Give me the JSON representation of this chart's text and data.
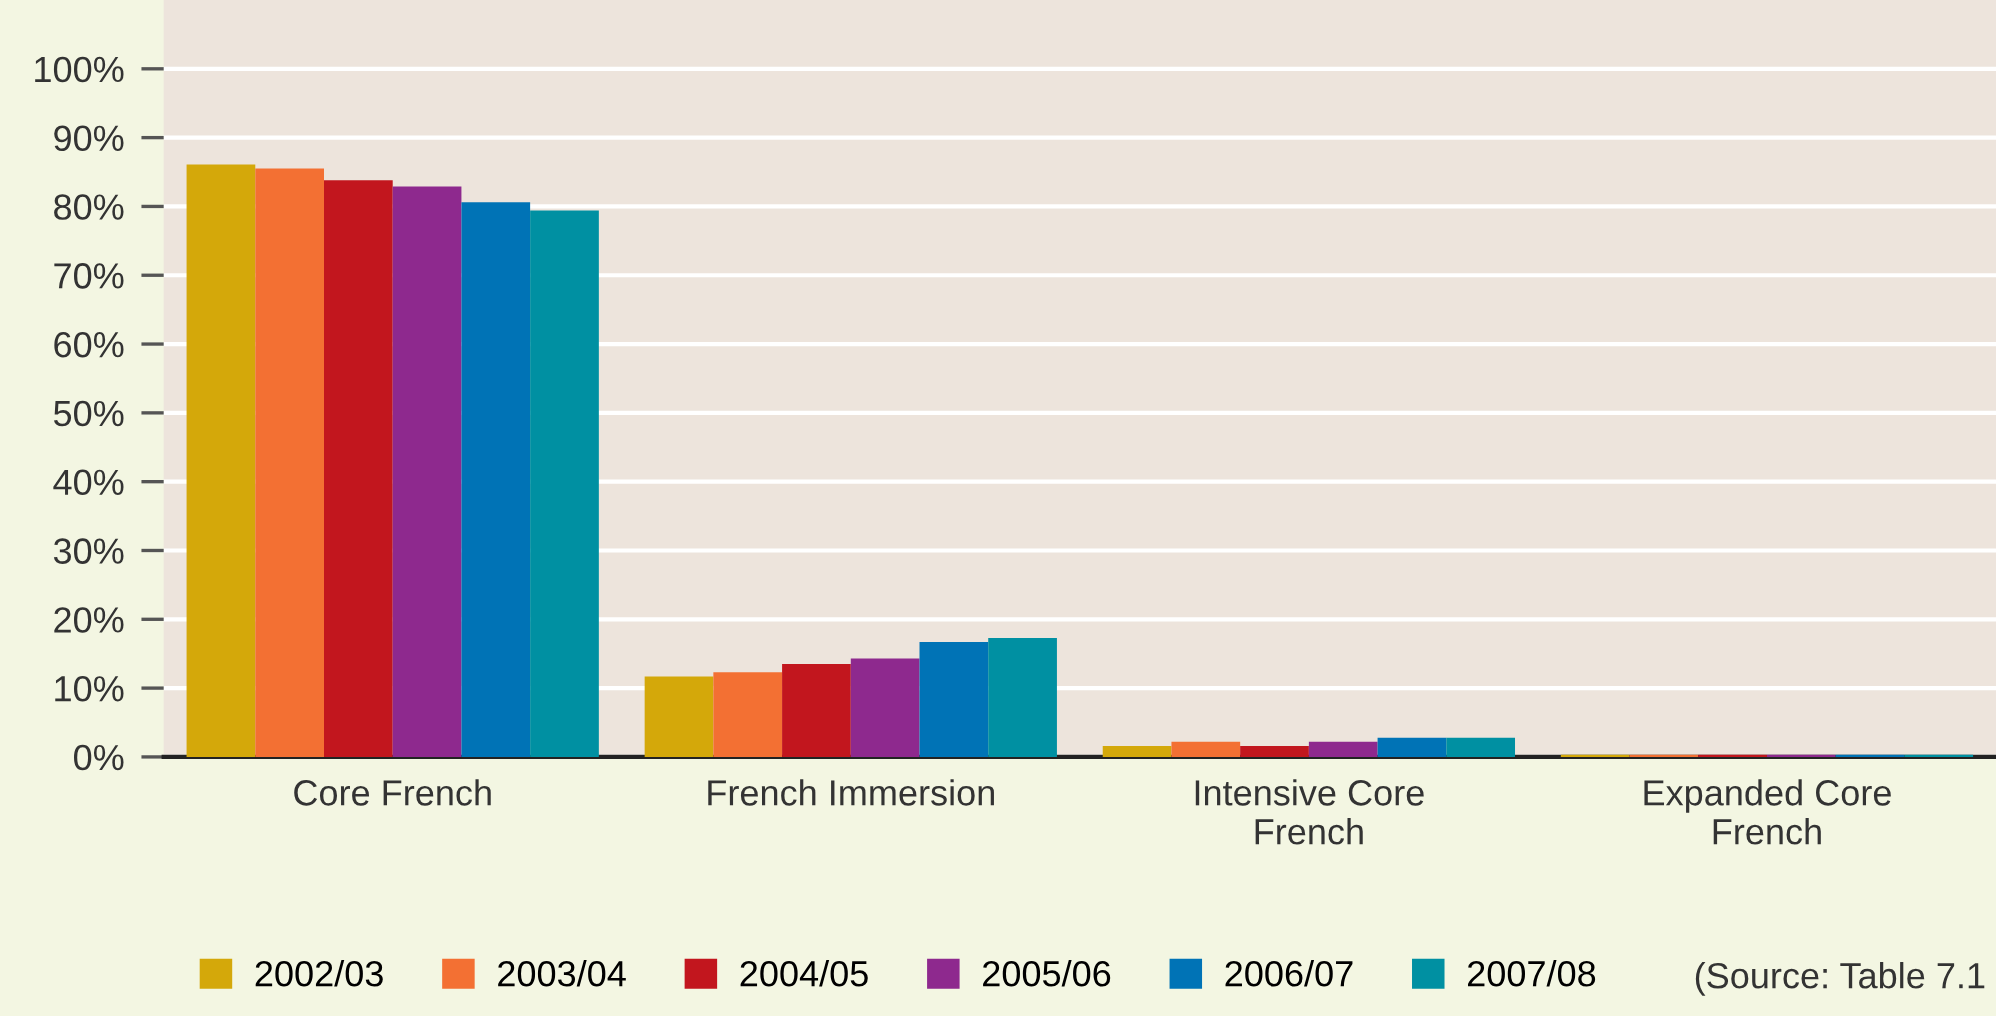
{
  "chart_data": {
    "type": "bar",
    "categories": [
      "Core French",
      "French Immersion",
      "Intensive Core\nFrench",
      "Expanded Core\nFrench"
    ],
    "series": [
      {
        "name": "2002/03",
        "color": "#d4a80a",
        "values": [
          86.1,
          11.7,
          1.6,
          0.3
        ]
      },
      {
        "name": "2003/04",
        "color": "#f37033",
        "values": [
          85.5,
          12.3,
          2.2,
          0.3
        ]
      },
      {
        "name": "2004/05",
        "color": "#c2161e",
        "values": [
          83.8,
          13.5,
          1.6,
          0.3
        ]
      },
      {
        "name": "2005/06",
        "color": "#8e298e",
        "values": [
          82.9,
          14.3,
          2.2,
          0.3
        ]
      },
      {
        "name": "2006/07",
        "color": "#0073b6",
        "values": [
          80.6,
          16.7,
          2.8,
          0.3
        ]
      },
      {
        "name": "2007/08",
        "color": "#0090a2",
        "values": [
          79.4,
          17.3,
          2.8,
          0.3
        ]
      }
    ],
    "ylim": [
      0,
      110
    ],
    "yticks": [
      {
        "value": 0,
        "label": "0%"
      },
      {
        "value": 10,
        "label": "10%"
      },
      {
        "value": 20,
        "label": "20%"
      },
      {
        "value": 30,
        "label": "30%"
      },
      {
        "value": 40,
        "label": "40%"
      },
      {
        "value": 50,
        "label": "50%"
      },
      {
        "value": 60,
        "label": "60%"
      },
      {
        "value": 70,
        "label": "70%"
      },
      {
        "value": 80,
        "label": "80%"
      },
      {
        "value": 90,
        "label": "90%"
      },
      {
        "value": 100,
        "label": "100%"
      }
    ],
    "grid": "y",
    "legend": "bottom",
    "annotations": [
      "(Source: Table 7.1"
    ]
  }
}
